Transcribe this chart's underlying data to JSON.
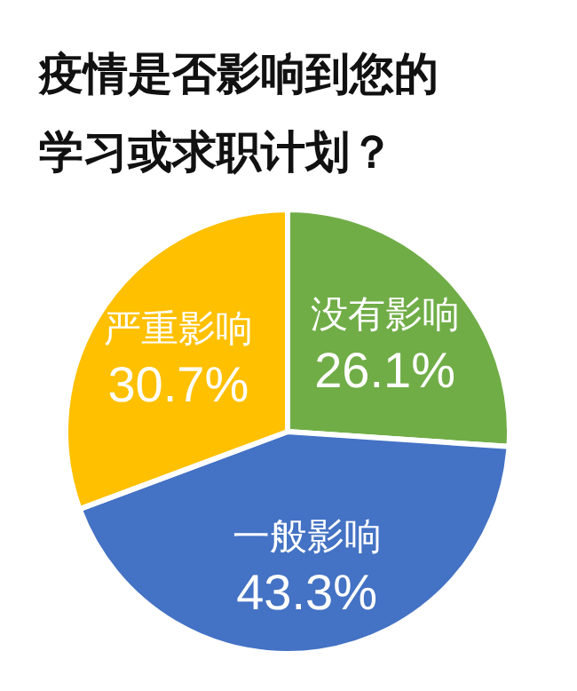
{
  "chart_data": {
    "type": "pie",
    "title": "疫情是否影响到您的学习或求职计划？",
    "categories": [
      "没有影响",
      "一般影响",
      "严重影响"
    ],
    "values": [
      26.1,
      43.3,
      30.7
    ],
    "value_labels": [
      "26.1%",
      "43.3%",
      "30.7%"
    ],
    "colors": [
      "#70ad47",
      "#4472c4",
      "#ffc000"
    ]
  }
}
